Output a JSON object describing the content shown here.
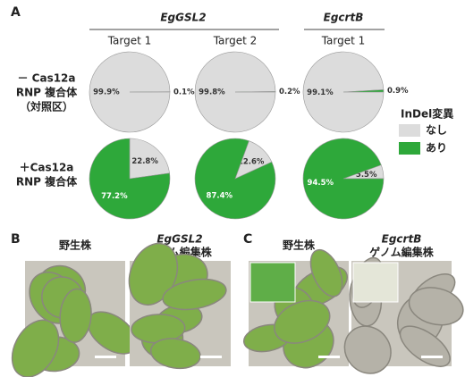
{
  "panel_a": {
    "label": "A",
    "groups": [
      {
        "name": "EgGSL2",
        "targets": [
          "Target 1",
          "Target 2"
        ]
      },
      {
        "name": "EgcrtB",
        "targets": [
          "Target 1"
        ]
      }
    ],
    "row_labels": [
      [
        "－ Cas12a",
        "RNP 複合体",
        "（対照区）"
      ],
      [
        "＋Cas12a",
        "RNP 複合体"
      ]
    ],
    "legend_title": "InDel変異"
  },
  "chart_data": [
    {
      "type": "pie",
      "categories": [
        "なし",
        "あり"
      ],
      "colors": [
        "#dcdcdc",
        "#2ea83a"
      ],
      "start_angle": 90,
      "values": [
        99.9,
        0.1
      ],
      "value_labels": [
        "99.9%",
        "0.1%"
      ]
    },
    {
      "type": "pie",
      "categories": [
        "なし",
        "あり"
      ],
      "colors": [
        "#dcdcdc",
        "#2ea83a"
      ],
      "start_angle": 90,
      "values": [
        99.8,
        0.2
      ],
      "value_labels": [
        "99.8%",
        "0.2%"
      ]
    },
    {
      "type": "pie",
      "categories": [
        "なし",
        "あり"
      ],
      "colors": [
        "#dcdcdc",
        "#2ea83a"
      ],
      "start_angle": 90,
      "values": [
        99.1,
        0.9
      ],
      "value_labels": [
        "99.1%",
        "0.9%"
      ]
    },
    {
      "type": "pie",
      "categories": [
        "なし",
        "あり"
      ],
      "colors": [
        "#dcdcdc",
        "#2ea83a"
      ],
      "start_angle": 0,
      "values": [
        22.8,
        77.2
      ],
      "value_labels": [
        "22.8%",
        "77.2%"
      ]
    },
    {
      "type": "pie",
      "categories": [
        "なし",
        "あり"
      ],
      "colors": [
        "#dcdcdc",
        "#2ea83a"
      ],
      "start_angle": 20,
      "values": [
        12.6,
        87.4
      ],
      "value_labels": [
        "12.6%",
        "87.4%"
      ]
    },
    {
      "type": "pie",
      "categories": [
        "なし",
        "あり"
      ],
      "colors": [
        "#dcdcdc",
        "#2ea83a"
      ],
      "start_angle": 70,
      "values": [
        5.5,
        94.5
      ],
      "value_labels": [
        "5.5%",
        "94.5%"
      ]
    }
  ],
  "panel_b": {
    "label": "B",
    "captions": [
      [
        "野生株"
      ],
      [
        "EgGSL2",
        "ゲノム編集株"
      ]
    ]
  },
  "panel_c": {
    "label": "C",
    "captions": [
      [
        "野生株"
      ],
      [
        "EgcrtB",
        "ゲノム編集株"
      ]
    ]
  }
}
